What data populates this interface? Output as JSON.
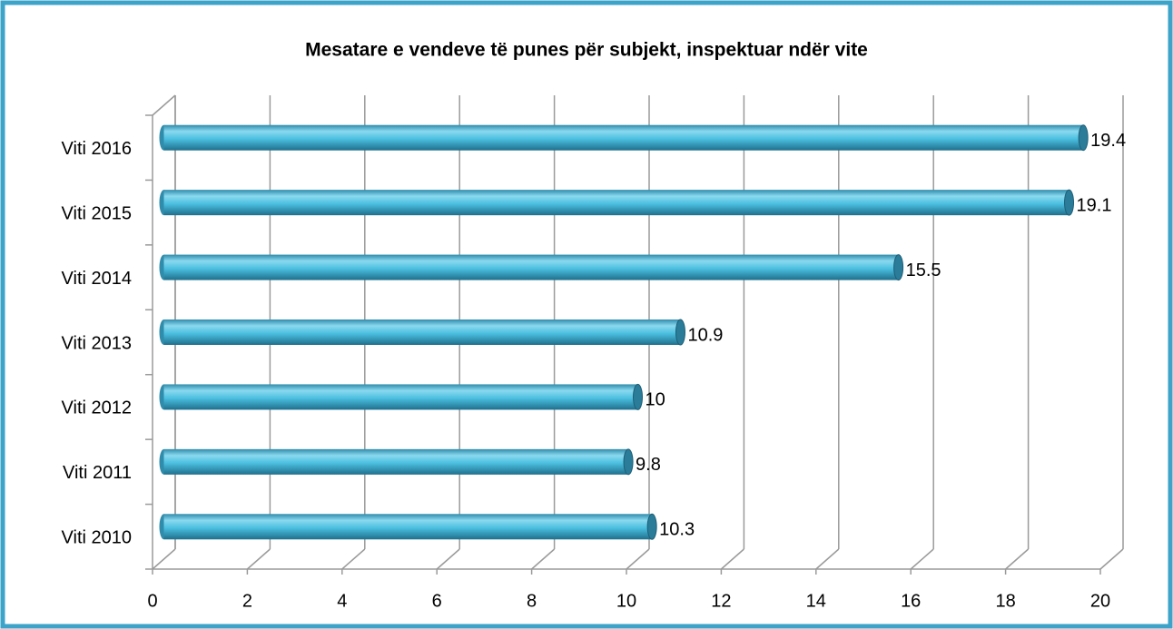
{
  "chart_data": {
    "type": "bar",
    "orientation": "horizontal",
    "title": "Mesatare e vendeve të punes për subjekt, inspektuar ndër vite",
    "categories": [
      "Viti 2010",
      "Viti 2011",
      "Viti 2012",
      "Viti 2013",
      "Viti 2014",
      "Viti 2015",
      "Viti 2016"
    ],
    "values": [
      10.3,
      9.8,
      10,
      10.9,
      15.5,
      19.1,
      19.4
    ],
    "color": "#4bbfe0",
    "xlim": [
      0,
      20
    ],
    "xticks": [
      0,
      2,
      4,
      6,
      8,
      10,
      12,
      14,
      16,
      18,
      20
    ],
    "grid": true
  }
}
